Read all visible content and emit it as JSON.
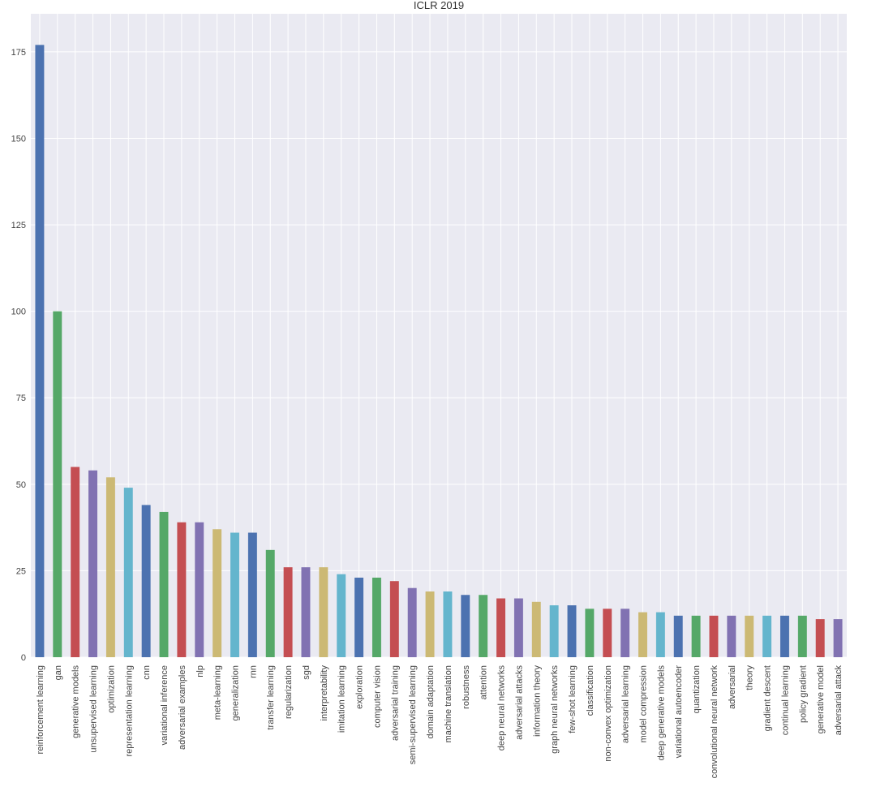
{
  "chart_data": {
    "type": "bar",
    "title": "ICLR 2019",
    "xlabel": "",
    "ylabel": "",
    "ylim": [
      0,
      186
    ],
    "yticks": [
      0,
      25,
      50,
      75,
      100,
      125,
      150,
      175
    ],
    "grid": true,
    "background": "#EAEAF2",
    "colors": [
      "#4C72B0",
      "#55A868",
      "#C44E52",
      "#8172B2",
      "#CCB974",
      "#64B5CD"
    ],
    "categories": [
      "reinforcement learning",
      "gan",
      "generative models",
      "unsupervised learning",
      "optimization",
      "representation learning",
      "cnn",
      "variational inference",
      "adversarial examples",
      "nlp",
      "meta-learning",
      "generalization",
      "rnn",
      "transfer learning",
      "regularization",
      "sgd",
      "interpretability",
      "imitation learning",
      "exploration",
      "computer vision",
      "adversarial training",
      "semi-supervised learning",
      "domain adaptation",
      "machine translation",
      "robustness",
      "attention",
      "deep neural networks",
      "adversarial attacks",
      "information theory",
      "graph neural networks",
      "few-shot learning",
      "classification",
      "non-convex optimization",
      "adversarial learning",
      "model compression",
      "deep generative models",
      "variational autoencoder",
      "quantization",
      "convolutional neural network",
      "adversarial",
      "theory",
      "gradient descent",
      "continual learning",
      "policy gradient",
      "generative model",
      "adversarial attack"
    ],
    "values": [
      177,
      100,
      55,
      54,
      52,
      49,
      44,
      42,
      39,
      39,
      37,
      36,
      36,
      31,
      26,
      26,
      26,
      24,
      23,
      23,
      22,
      20,
      19,
      19,
      18,
      18,
      17,
      17,
      16,
      15,
      15,
      14,
      14,
      14,
      13,
      13,
      12,
      12,
      12,
      12,
      12,
      12,
      12,
      12,
      11,
      11
    ]
  }
}
